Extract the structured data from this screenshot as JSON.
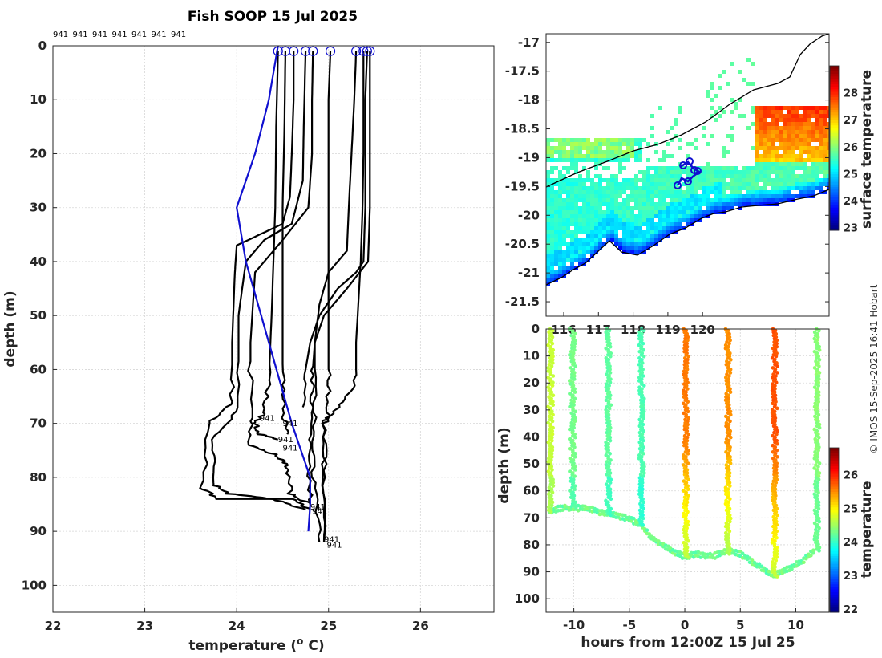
{
  "chart_data": [
    {
      "type": "line",
      "title": "Fish SOOP 15 Jul 2025",
      "xlabel": "temperature (",
      "xlabel_sup": "o",
      "xlabel_suffix": " C)",
      "ylabel": "depth (m)",
      "xlim": [
        22,
        26.8
      ],
      "ylim": [
        105,
        0
      ],
      "xticks": [
        "22",
        "23",
        "24",
        "25",
        "26"
      ],
      "yticks": [
        "0",
        "10",
        "20",
        "30",
        "40",
        "50",
        "60",
        "70",
        "80",
        "90",
        "100"
      ],
      "top_labels": [
        "941",
        "941",
        "941",
        "941",
        "941",
        "941",
        "941"
      ],
      "profile_label": "941",
      "reference_series": {
        "name": "climatology",
        "color": "#1010d0",
        "points": [
          [
            24.45,
            0
          ],
          [
            24.35,
            10
          ],
          [
            24.2,
            20
          ],
          [
            24.0,
            30
          ],
          [
            24.1,
            40
          ],
          [
            24.35,
            55
          ],
          [
            24.6,
            70
          ],
          [
            24.8,
            80
          ],
          [
            24.8,
            85
          ],
          [
            24.78,
            90
          ]
        ]
      },
      "series": [
        {
          "name": "p1",
          "points": [
            [
              24.45,
              1
            ],
            [
              24.43,
              15
            ],
            [
              24.42,
              30
            ],
            [
              24.4,
              40
            ],
            [
              24.38,
              50
            ],
            [
              24.35,
              62
            ],
            [
              24.3,
              68
            ],
            [
              24.2,
              70
            ],
            [
              24.25,
              72
            ],
            [
              24.45,
              73
            ]
          ]
        },
        {
          "name": "p2",
          "points": [
            [
              24.53,
              1
            ],
            [
              24.52,
              15
            ],
            [
              24.5,
              30
            ],
            [
              24.5,
              40
            ],
            [
              24.5,
              50
            ],
            [
              24.5,
              62
            ],
            [
              24.52,
              69
            ],
            [
              24.55,
              72
            ]
          ]
        },
        {
          "name": "p3",
          "points": [
            [
              24.62,
              1
            ],
            [
              24.62,
              10
            ],
            [
              24.6,
              20
            ],
            [
              24.58,
              28
            ],
            [
              24.5,
              33
            ],
            [
              24.0,
              37
            ],
            [
              23.98,
              42
            ],
            [
              23.95,
              55
            ],
            [
              23.95,
              66
            ],
            [
              23.7,
              70
            ],
            [
              23.63,
              82
            ],
            [
              23.8,
              84
            ],
            [
              24.2,
              84
            ],
            [
              24.6,
              84
            ],
            [
              24.8,
              86
            ]
          ]
        },
        {
          "name": "p4",
          "points": [
            [
              24.75,
              1
            ],
            [
              24.73,
              15
            ],
            [
              24.72,
              25
            ],
            [
              24.6,
              33
            ],
            [
              24.3,
              36
            ],
            [
              24.1,
              40
            ],
            [
              24.02,
              50
            ],
            [
              24.02,
              67
            ],
            [
              23.75,
              73
            ],
            [
              23.73,
              81
            ],
            [
              23.9,
              83
            ],
            [
              24.4,
              84
            ],
            [
              24.75,
              86
            ]
          ]
        },
        {
          "name": "p5",
          "points": [
            [
              24.83,
              1
            ],
            [
              24.82,
              10
            ],
            [
              24.82,
              20
            ],
            [
              24.78,
              30
            ],
            [
              24.5,
              36
            ],
            [
              24.2,
              42
            ],
            [
              24.15,
              55
            ],
            [
              24.15,
              69
            ],
            [
              24.15,
              74
            ],
            [
              24.45,
              76
            ],
            [
              24.55,
              78
            ],
            [
              24.58,
              83
            ],
            [
              24.8,
              85
            ]
          ]
        },
        {
          "name": "p6",
          "points": [
            [
              25.02,
              1
            ],
            [
              25.0,
              10
            ],
            [
              25.0,
              25
            ],
            [
              25.0,
              40
            ],
            [
              25.0,
              60
            ],
            [
              25.0,
              68
            ],
            [
              24.95,
              70
            ],
            [
              24.95,
              80
            ],
            [
              24.95,
              92
            ]
          ]
        },
        {
          "name": "p7",
          "points": [
            [
              25.3,
              1
            ],
            [
              25.28,
              10
            ],
            [
              25.25,
              20
            ],
            [
              25.22,
              30
            ],
            [
              25.2,
              38
            ],
            [
              25.0,
              42
            ],
            [
              24.9,
              48
            ],
            [
              24.85,
              55
            ],
            [
              24.85,
              68
            ],
            [
              24.82,
              75
            ],
            [
              24.85,
              83
            ],
            [
              24.9,
              92
            ]
          ]
        },
        {
          "name": "p8",
          "points": [
            [
              25.38,
              1
            ],
            [
              25.38,
              10
            ],
            [
              25.38,
              20
            ],
            [
              25.37,
              30
            ],
            [
              25.35,
              40
            ],
            [
              25.3,
              55
            ],
            [
              25.3,
              63
            ],
            [
              25.1,
              67
            ],
            [
              24.95,
              70
            ],
            [
              24.95,
              80
            ],
            [
              24.95,
              92
            ]
          ]
        },
        {
          "name": "p9",
          "points": [
            [
              25.42,
              1
            ],
            [
              25.4,
              10
            ],
            [
              25.4,
              20
            ],
            [
              25.4,
              30
            ],
            [
              25.38,
              40
            ],
            [
              25.3,
              42
            ],
            [
              25.1,
              45
            ],
            [
              24.9,
              50
            ],
            [
              24.8,
              55
            ],
            [
              24.75,
              60
            ],
            [
              24.72,
              67
            ]
          ]
        },
        {
          "name": "p10",
          "points": [
            [
              25.45,
              1
            ],
            [
              25.45,
              15
            ],
            [
              25.45,
              30
            ],
            [
              25.43,
              40
            ],
            [
              25.2,
              45
            ],
            [
              24.95,
              50
            ],
            [
              24.85,
              55
            ],
            [
              24.82,
              62
            ],
            [
              24.8,
              70
            ],
            [
              24.78,
              78
            ],
            [
              24.8,
              85
            ]
          ]
        }
      ]
    },
    {
      "type": "heatmap",
      "ylim": [
        -21.75,
        -16.85
      ],
      "yticks": [
        "-17",
        "-17.5",
        "-18",
        "-18.5",
        "-19",
        "-19.5",
        "-20",
        "-20.5",
        "-21",
        "-21.5"
      ],
      "xticks": [
        "116",
        "117",
        "118",
        "119",
        "120"
      ],
      "colorbar_label": "surface temperature",
      "colorbar_ticks": [
        "23",
        "24",
        "25",
        "26",
        "27",
        "28"
      ],
      "clim": [
        23,
        29
      ]
    },
    {
      "type": "scatter",
      "xlabel": "hours from 12:00Z 15 Jul 25",
      "ylabel": "depth (m)",
      "xlim": [
        -12.5,
        13
      ],
      "ylim": [
        105,
        0
      ],
      "xticks": [
        "-10",
        "-5",
        "0",
        "5",
        "10"
      ],
      "yticks": [
        "0",
        "10",
        "20",
        "30",
        "40",
        "50",
        "60",
        "70",
        "80",
        "90",
        "100"
      ],
      "colorbar_label": "temperature",
      "colorbar_ticks": [
        "22",
        "23",
        "24",
        "25",
        "26"
      ],
      "clim": [
        21.9,
        26.8
      ],
      "casts": [
        {
          "t": -12.2,
          "bottom": 68,
          "temp": 24.7
        },
        {
          "t": -10.2,
          "bottom": 66,
          "temp": 24.3
        },
        {
          "t": -7.0,
          "bottom": 69,
          "temp": 24.2
        },
        {
          "t": -4.0,
          "bottom": 73,
          "temp": 24.1
        },
        {
          "t": 0.0,
          "bottom": 85,
          "temp": 25.6
        },
        {
          "t": 3.8,
          "bottom": 83,
          "temp": 25.5
        },
        {
          "t": 8.0,
          "bottom": 92,
          "temp": 25.8
        },
        {
          "t": 11.8,
          "bottom": 82,
          "temp": 24.4
        }
      ],
      "bottom_track": [
        [
          -12.2,
          68
        ],
        [
          -11,
          67
        ],
        [
          -10.2,
          67
        ],
        [
          -9,
          67
        ],
        [
          -7,
          69
        ],
        [
          -6,
          70
        ],
        [
          -5,
          71
        ],
        [
          -4,
          73
        ],
        [
          -3,
          78
        ],
        [
          -1.5,
          82
        ],
        [
          0,
          85
        ],
        [
          1,
          84
        ],
        [
          2.5,
          85
        ],
        [
          3.8,
          83
        ],
        [
          5,
          84
        ],
        [
          6.5,
          88
        ],
        [
          8,
          92
        ],
        [
          9,
          90
        ],
        [
          10.5,
          87
        ],
        [
          11.8,
          82
        ]
      ]
    }
  ],
  "watermark": "© IMOS 15-Sep-2025 16:41 Hobart"
}
